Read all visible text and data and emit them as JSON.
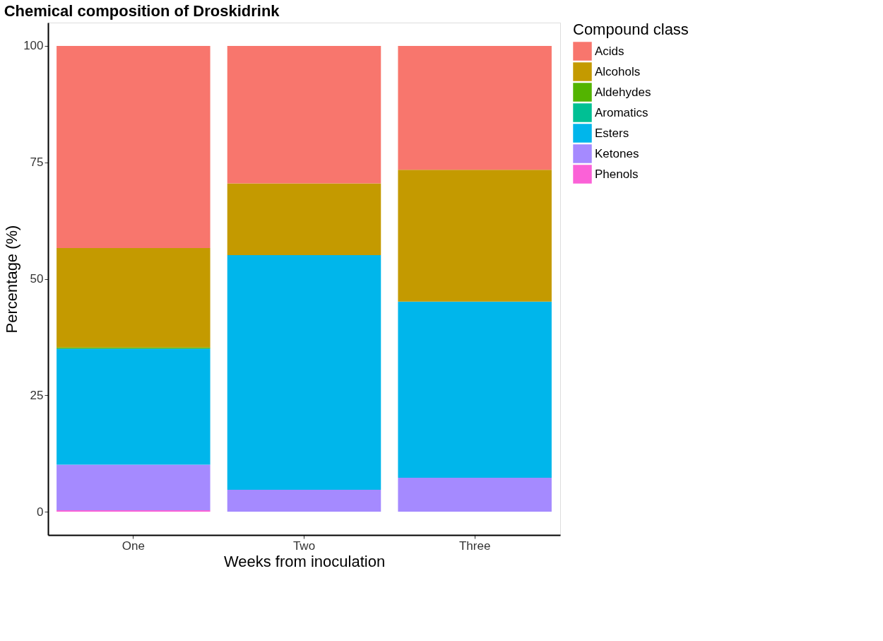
{
  "chart_data": {
    "type": "bar",
    "title": "Chemical composition of Droskidrink",
    "xlabel": "Weeks from inoculation",
    "ylabel": "Percentage (%)",
    "legend_title": "Compound class",
    "categories": [
      "One",
      "Two",
      "Three"
    ],
    "stacked": true,
    "series": [
      {
        "name": "Phenols",
        "color": "#fb61d7",
        "values": [
          0.3,
          0,
          0
        ]
      },
      {
        "name": "Ketones",
        "color": "#a58aff",
        "values": [
          9.8,
          4.7,
          7.3
        ]
      },
      {
        "name": "Esters",
        "color": "#00b6eb",
        "values": [
          24.9,
          50.4,
          37.8
        ]
      },
      {
        "name": "Aromatics",
        "color": "#00c094",
        "values": [
          0,
          0,
          0
        ]
      },
      {
        "name": "Aldehydes",
        "color": "#53b400",
        "values": [
          0.3,
          0,
          0
        ]
      },
      {
        "name": "Alcohols",
        "color": "#c49a00",
        "values": [
          21.3,
          15.4,
          28.3
        ]
      },
      {
        "name": "Acids",
        "color": "#f8766d",
        "values": [
          43.4,
          29.5,
          26.6
        ]
      }
    ],
    "ylim": [
      -5,
      105
    ],
    "yticks": [
      0,
      25,
      50,
      75,
      100
    ],
    "grid": false,
    "legend": "right"
  }
}
